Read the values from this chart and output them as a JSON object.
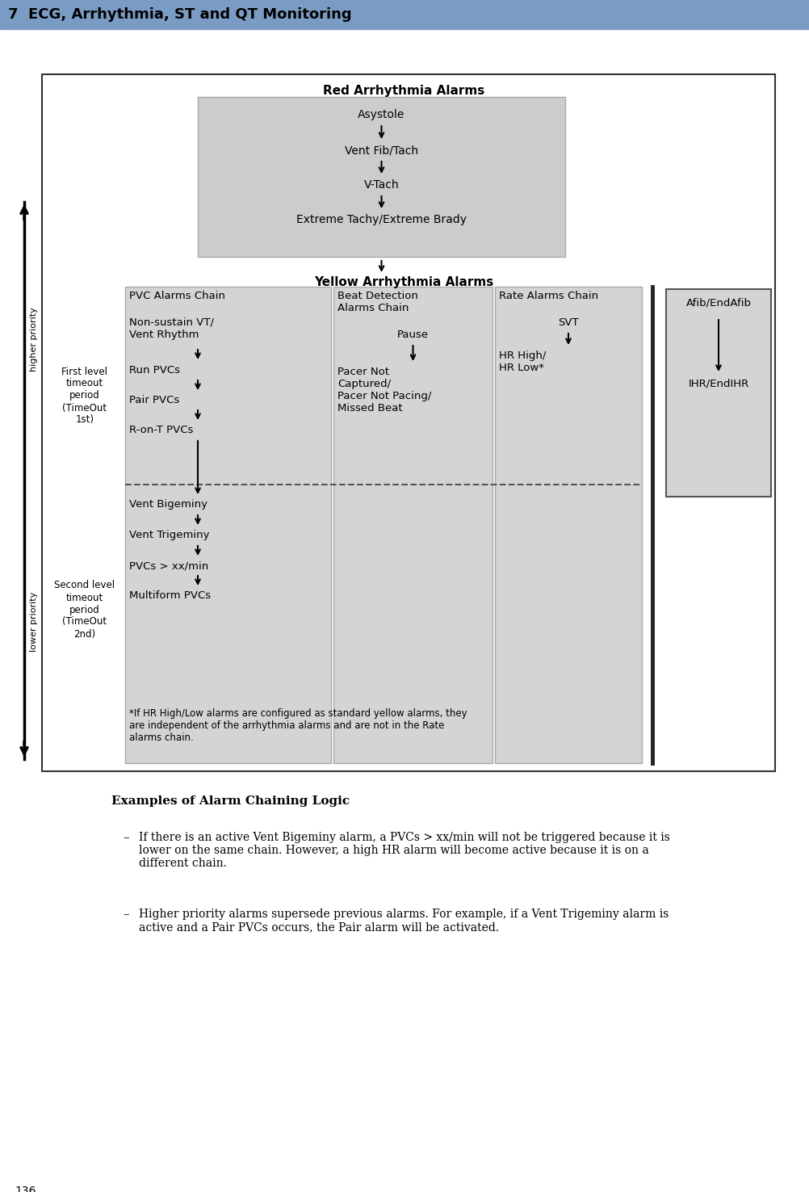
{
  "header_bg": "#7a9cc4",
  "header_text": "7  ECG, Arrhythmia, ST and QT Monitoring",
  "page_bg": "#ffffff",
  "page_number": "136",
  "red_box_bg": "#cccccc",
  "yellow_box_bg": "#d4d4d4",
  "red_title": "Red Arrhythmia Alarms",
  "yellow_title": "Yellow Arrhythmia Alarms",
  "red_items": [
    "Asystole",
    "Vent Fib/Tach",
    "V-Tach",
    "Extreme Tachy/Extreme Brady"
  ],
  "pvc_chain_title": "PVC Alarms Chain",
  "beat_chain_title": "Beat Detection\nAlarms Chain",
  "rate_chain_title": "Rate Alarms Chain",
  "afib_title": "Afib/EndAfib",
  "afib_item": "IHR/EndIHR",
  "first_level_label": "First level\ntimeout\nperiod\n(TimeOut\n1st)",
  "second_level_label": "Second level\ntimeout\nperiod\n(TimeOut\n2nd)",
  "footnote": "*If HR High/Low alarms are configured as standard yellow alarms, they\nare independent of the arrhythmia alarms and are not in the Rate\nalarms chain.",
  "examples_title": "Examples of Alarm Chaining Logic",
  "bullet1": "If there is an active Vent Bigeminy alarm, a PVCs > xx/min will not be triggered because it is\nlower on the same chain. However, a high HR alarm will become active because it is on a\ndifferent chain.",
  "bullet2": "Higher priority alarms supersede previous alarms. For example, if a Vent Trigeminy alarm is\nactive and a Pair PVCs occurs, the Pair alarm will be activated."
}
